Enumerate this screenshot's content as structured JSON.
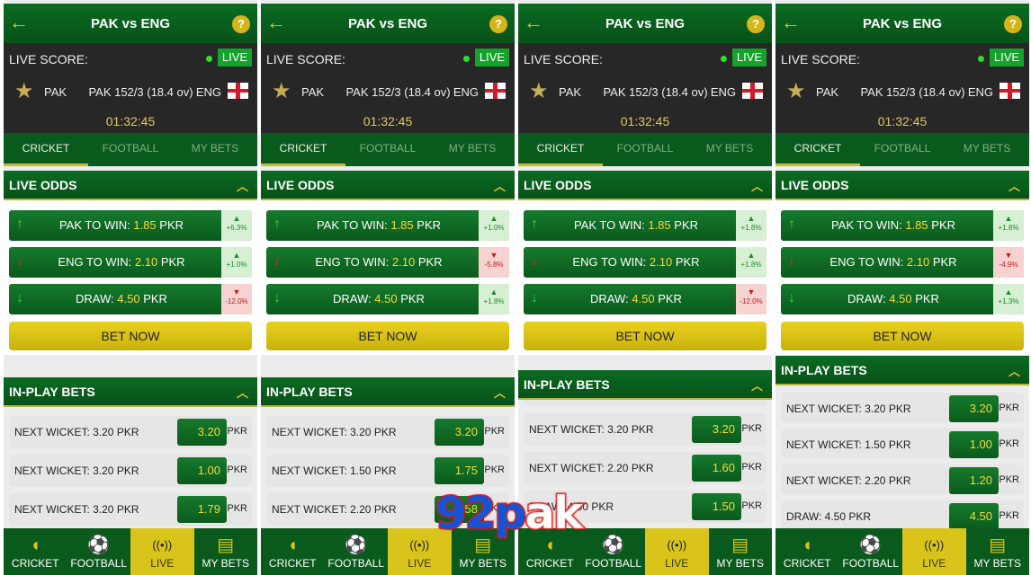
{
  "header": {
    "title": "PAK vs ENG",
    "help_icon": "?"
  },
  "score": {
    "label": "LIVE SCORE:",
    "live_badge": "LIVE",
    "team_a": "PAK",
    "team_b": "ENG",
    "score_text": "PAK 152/3 (18.4 ov)",
    "timer": "01:32:45"
  },
  "tabs": [
    "CRICKET",
    "FOOTBALL",
    "MY BETS"
  ],
  "live_odds": {
    "title": "LIVE ODDS",
    "bet_now": "BET NOW"
  },
  "in_play": {
    "title": "IN-PLAY BETS",
    "currency": "PKR"
  },
  "nav": [
    "CRICKET",
    "FOOTBALL",
    "LIVE",
    "MY BETS"
  ],
  "colors": {
    "primary_green": "#0a5a1d",
    "accent_yellow": "#d8c41a",
    "up": "#1c8a2c",
    "down": "#c41c1c"
  },
  "watermark": "92pak",
  "panels": [
    {
      "odds": [
        {
          "label": "PAK TO WIN:",
          "value": "1.85",
          "unit": "PKR",
          "trend": "up",
          "change": "+6.3%",
          "dir": "up"
        },
        {
          "label": "ENG TO WIN:",
          "value": "2.10",
          "unit": "PKR",
          "trend": "down",
          "change": "+1.0%",
          "dir": "up"
        },
        {
          "label": "DRAW:",
          "value": "4.50",
          "unit": "PKR",
          "trend": "down-green",
          "change": "-12.0%",
          "dir": "down"
        }
      ],
      "bets": [
        {
          "label": "NEXT WICKET: 3.20 PKR",
          "odd": "3.20"
        },
        {
          "label": "NEXT WICKET: 3.20 PKR",
          "odd": "1.00"
        },
        {
          "label": "NEXT WICKET: 3.20 PKR",
          "odd": "1.79"
        }
      ]
    },
    {
      "odds": [
        {
          "label": "PAK TO WIN:",
          "value": "1.85",
          "unit": "PKR",
          "trend": "up",
          "change": "+1.0%",
          "dir": "up"
        },
        {
          "label": "ENG TO WIN:",
          "value": "2.10",
          "unit": "PKR",
          "trend": "down",
          "change": "-5.8%",
          "dir": "down"
        },
        {
          "label": "DRAW:",
          "value": "4.50",
          "unit": "PKR",
          "trend": "down-green",
          "change": "+1.8%",
          "dir": "up"
        }
      ],
      "bets": [
        {
          "label": "NEXT WICKET: 3.20 PKR",
          "odd": "3.20"
        },
        {
          "label": "NEXT WICKET: 1.50 PKR",
          "odd": "1.75"
        },
        {
          "label": "NEXT WICKET: 2.20 PKR",
          "odd": "1.58"
        }
      ]
    },
    {
      "odds": [
        {
          "label": "PAK TO WIN:",
          "value": "1.85",
          "unit": "PKR",
          "trend": "up",
          "change": "+1.8%",
          "dir": "up"
        },
        {
          "label": "ENG TO WIN:",
          "value": "2.10",
          "unit": "PKR",
          "trend": "down",
          "change": "+1.8%",
          "dir": "up"
        },
        {
          "label": "DRAW:",
          "value": "4.50",
          "unit": "PKR",
          "trend": "down-green",
          "change": "-12.0%",
          "dir": "down"
        }
      ],
      "bets": [
        {
          "label": "NEXT WICKET: 3.20 PKR",
          "odd": "3.20"
        },
        {
          "label": "NEXT WICKET: 2.20 PKR",
          "odd": "1.60"
        },
        {
          "label": "DRAW: 4.50 PKR",
          "odd": "1.50"
        }
      ]
    },
    {
      "odds": [
        {
          "label": "PAK TO WIN:",
          "value": "1.85",
          "unit": "PKR",
          "trend": "up",
          "change": "+1.8%",
          "dir": "up"
        },
        {
          "label": "ENG TO WIN:",
          "value": "2.10",
          "unit": "PKR",
          "trend": "down",
          "change": "-4.9%",
          "dir": "down"
        },
        {
          "label": "DRAW:",
          "value": "4.50",
          "unit": "PKR",
          "trend": "down-green",
          "change": "+1.3%",
          "dir": "up"
        }
      ],
      "bets": [
        {
          "label": "NEXT WICKET: 3.20 PKR",
          "odd": "3.20"
        },
        {
          "label": "NEXT WICKET: 1.50 PKR",
          "odd": "1.00"
        },
        {
          "label": "NEXT WICKET: 2.20 PKR",
          "odd": "1.20"
        },
        {
          "label": "DRAW: 4.50 PKR",
          "odd": "4.50"
        }
      ]
    }
  ]
}
